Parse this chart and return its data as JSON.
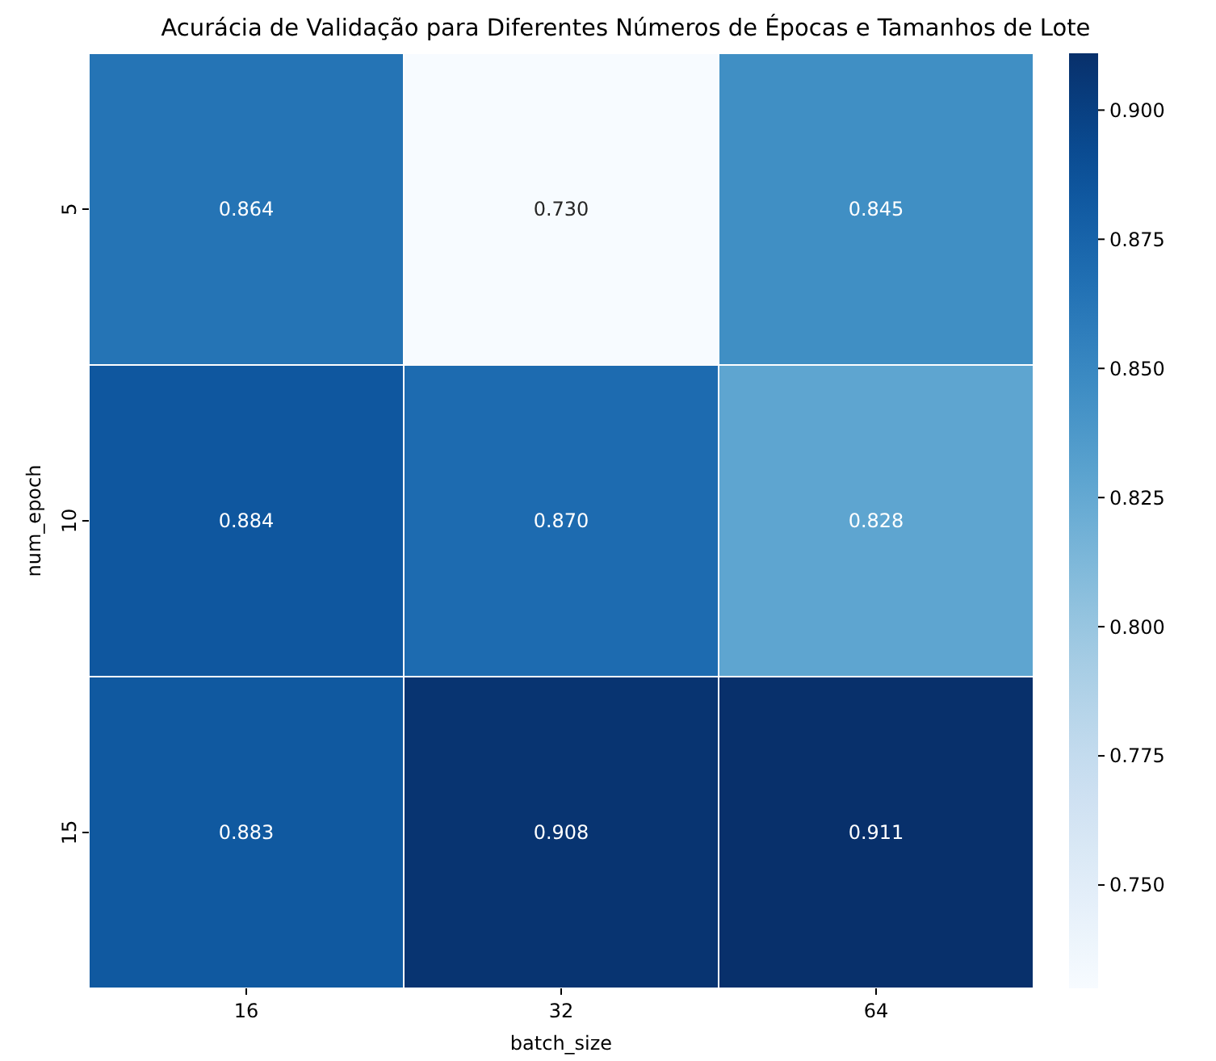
{
  "chart_data": {
    "type": "heatmap",
    "title": "Acurácia de Validação para Diferentes Números de Épocas e Tamanhos de Lote",
    "xlabel": "batch_size",
    "ylabel": "num_epoch",
    "categories": [
      "16",
      "32",
      "64"
    ],
    "y_categories": [
      "5",
      "10",
      "15"
    ],
    "cells": [
      [
        0.864,
        0.73,
        0.845
      ],
      [
        0.884,
        0.87,
        0.828
      ],
      [
        0.883,
        0.908,
        0.911
      ]
    ],
    "cell_labels": [
      [
        "0.864",
        "0.730",
        "0.845"
      ],
      [
        "0.884",
        "0.870",
        "0.828"
      ],
      [
        "0.883",
        "0.908",
        "0.911"
      ]
    ],
    "clim": [
      0.73,
      0.911
    ],
    "cticks": [
      {
        "value": 0.75,
        "label": "0.750"
      },
      {
        "value": 0.775,
        "label": "0.775"
      },
      {
        "value": 0.8,
        "label": "0.800"
      },
      {
        "value": 0.825,
        "label": "0.825"
      },
      {
        "value": 0.85,
        "label": "0.850"
      },
      {
        "value": 0.875,
        "label": "0.875"
      },
      {
        "value": 0.9,
        "label": "0.900"
      }
    ]
  }
}
